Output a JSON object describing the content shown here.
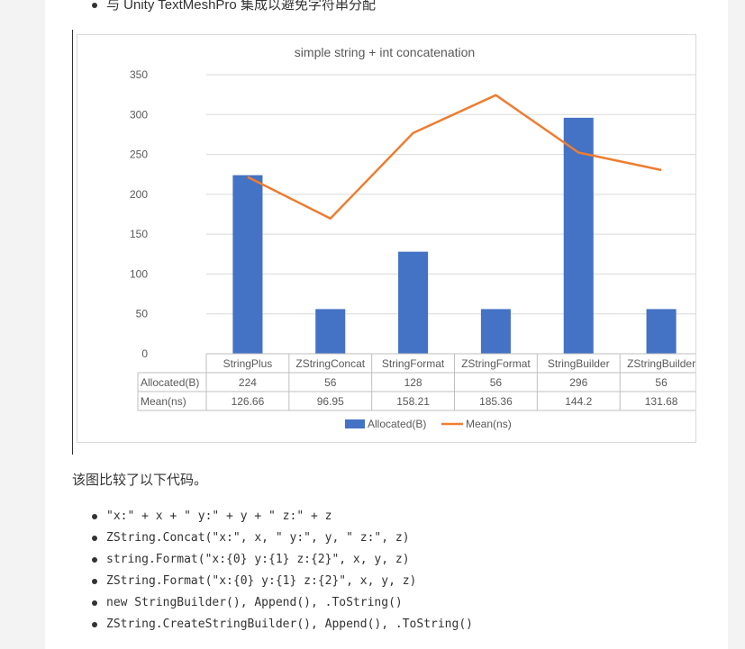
{
  "top_bullet": "与 Unity TextMeshPro 集成以避免字符串分配",
  "summary": "该图比较了以下代码。",
  "code_items": [
    "\"x:\" + x + \" y:\" + y + \" z:\" + z",
    "ZString.Concat(\"x:\", x, \" y:\", y, \" z:\", z)",
    "string.Format(\"x:{0} y:{1} z:{2}\", x, y, z)",
    "ZString.Format(\"x:{0} y:{1} z:{2}\", x, y, z)",
    "new StringBuilder(), Append(), .ToString()",
    "ZString.CreateStringBuilder(), Append(), .ToString()"
  ],
  "chart_data": {
    "type": "bar",
    "title": "simple string + int concatenation",
    "categories": [
      "StringPlus",
      "ZStringConcat",
      "StringFormat",
      "ZStringFormat",
      "StringBuilder",
      "ZStringBuilder"
    ],
    "series": [
      {
        "name": "Allocated(B)",
        "type": "bar",
        "axis": "left",
        "values": [
          224,
          56,
          128,
          56,
          296,
          56
        ],
        "labels": [
          "224",
          "56",
          "128",
          "56",
          "296",
          "56"
        ],
        "color": "#4472c4"
      },
      {
        "name": "Mean(ns)",
        "type": "line",
        "axis": "right",
        "values": [
          126.66,
          96.95,
          158.21,
          185.36,
          144.2,
          131.68
        ],
        "labels": [
          "126.66",
          "96.95",
          "158.21",
          "185.36",
          "144.2",
          "131.68"
        ],
        "color": "#ed7d31"
      }
    ],
    "ylim_left": [
      0,
      350
    ],
    "yticks_left": [
      "0",
      "50",
      "100",
      "150",
      "200",
      "250",
      "300",
      "350"
    ],
    "ylim_right": [
      0,
      200
    ],
    "yticks_right": [
      "0",
      "20",
      "40",
      "60",
      "80",
      "100",
      "120",
      "140",
      "160",
      "180",
      "200"
    ],
    "grid": true,
    "legend": "bottom",
    "data_table": true
  }
}
